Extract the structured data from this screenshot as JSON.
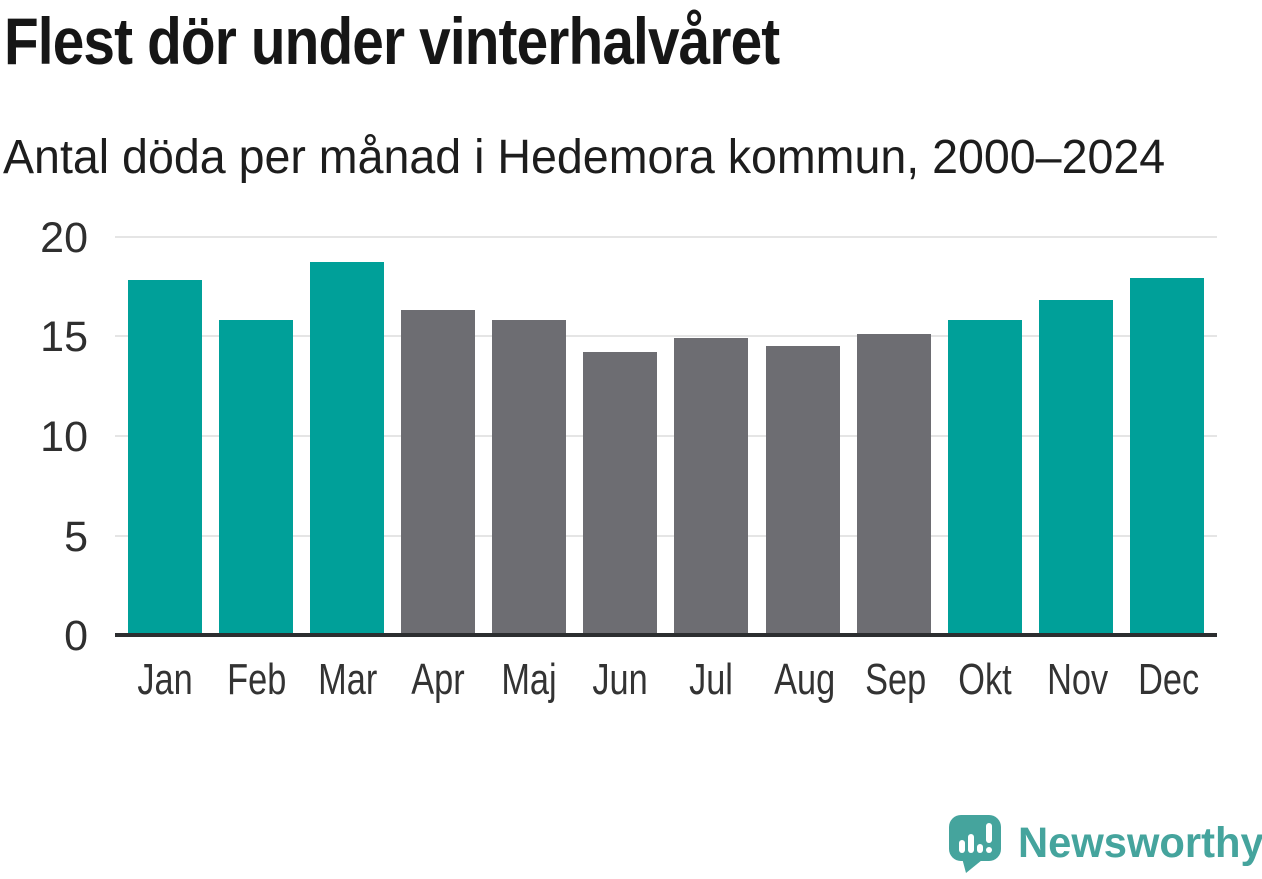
{
  "header": {
    "title": "Flest dör under vinterhalvåret",
    "subtitle": "Antal döda per månad i Hedemora kommun, 2000–2024"
  },
  "chart_data": {
    "type": "bar",
    "title": "Flest dör under vinterhalvåret",
    "subtitle": "Antal döda per månad i Hedemora kommun, 2000–2024",
    "categories": [
      "Jan",
      "Feb",
      "Mar",
      "Apr",
      "Maj",
      "Jun",
      "Jul",
      "Aug",
      "Sep",
      "Okt",
      "Nov",
      "Dec"
    ],
    "values": [
      17.8,
      15.8,
      18.7,
      16.3,
      15.8,
      14.2,
      14.9,
      14.5,
      15.1,
      15.8,
      16.8,
      17.9
    ],
    "bar_colors": [
      "#00a099",
      "#00a099",
      "#00a099",
      "#6d6d72",
      "#6d6d72",
      "#6d6d72",
      "#6d6d72",
      "#6d6d72",
      "#6d6d72",
      "#00a099",
      "#00a099",
      "#00a099"
    ],
    "colors": {
      "teal": "#00a099",
      "gray": "#6d6d72"
    },
    "xlabel": "",
    "ylabel": "",
    "ylim": [
      0,
      20
    ],
    "yticks": [
      20,
      15,
      10,
      5,
      0
    ],
    "grid": "horizontal",
    "legend_position": "none",
    "axis_color": "#2c2e30",
    "gridline_color": "#e5e5e5"
  },
  "branding": {
    "name": "Newsworthy",
    "color": "#45a49d",
    "icon": "speech-bubble-bar-chart-icon"
  }
}
